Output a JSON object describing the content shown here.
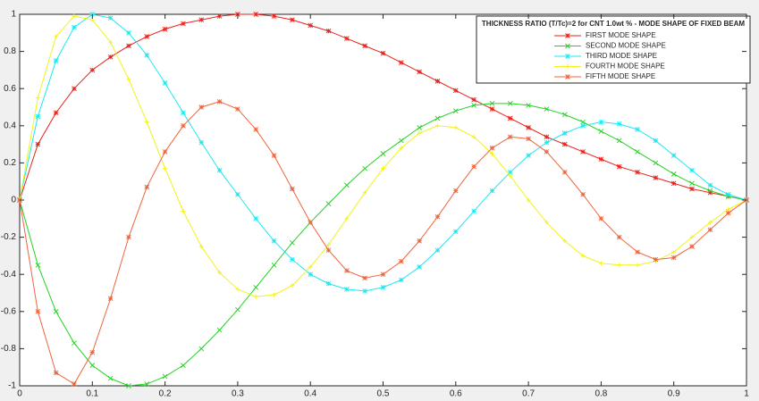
{
  "chart_data": {
    "type": "line",
    "legend_title": "THICKNESS RATIO (T/Tc)=2 for CNT 1.0wt % - MODE SHAPE OF FIXED BEAM",
    "legend_position": "upper right",
    "x": [
      0,
      0.025,
      0.05,
      0.075,
      0.1,
      0.125,
      0.15,
      0.175,
      0.2,
      0.225,
      0.25,
      0.275,
      0.3,
      0.325,
      0.35,
      0.375,
      0.4,
      0.425,
      0.45,
      0.475,
      0.5,
      0.525,
      0.55,
      0.575,
      0.6,
      0.625,
      0.65,
      0.675,
      0.7,
      0.725,
      0.75,
      0.775,
      0.8,
      0.825,
      0.85,
      0.875,
      0.9,
      0.925,
      0.95,
      0.975,
      1
    ],
    "xlim": [
      0,
      1
    ],
    "xticks": [
      0,
      0.1,
      0.2,
      0.3,
      0.4,
      0.5,
      0.6,
      0.7,
      0.8,
      0.9,
      1
    ],
    "ylim": [
      -1,
      1
    ],
    "yticks": [
      -1,
      -0.8,
      -0.6,
      -0.4,
      -0.2,
      0,
      0.2,
      0.4,
      0.6,
      0.8,
      1
    ],
    "grid": false,
    "series": [
      {
        "name": "FIRST MODE SHAPE",
        "color": "#e8231c",
        "marker": "star",
        "values": [
          0,
          0.3,
          0.47,
          0.6,
          0.7,
          0.77,
          0.83,
          0.88,
          0.92,
          0.95,
          0.97,
          0.99,
          1.0,
          1.0,
          0.99,
          0.97,
          0.94,
          0.91,
          0.87,
          0.83,
          0.79,
          0.74,
          0.69,
          0.64,
          0.59,
          0.54,
          0.49,
          0.44,
          0.39,
          0.34,
          0.3,
          0.26,
          0.22,
          0.18,
          0.15,
          0.12,
          0.09,
          0.06,
          0.04,
          0.02,
          0
        ]
      },
      {
        "name": "SECOND MODE SHAPE",
        "color": "#22d422",
        "marker": "x",
        "values": [
          0,
          -0.35,
          -0.6,
          -0.77,
          -0.89,
          -0.96,
          -1.0,
          -0.99,
          -0.95,
          -0.89,
          -0.8,
          -0.7,
          -0.59,
          -0.47,
          -0.35,
          -0.23,
          -0.12,
          -0.02,
          0.08,
          0.17,
          0.25,
          0.32,
          0.39,
          0.44,
          0.48,
          0.51,
          0.52,
          0.52,
          0.51,
          0.49,
          0.46,
          0.42,
          0.37,
          0.32,
          0.26,
          0.2,
          0.14,
          0.09,
          0.05,
          0.02,
          0
        ]
      },
      {
        "name": "THIRD MODE SHAPE",
        "color": "#1ee8f0",
        "marker": "star",
        "values": [
          0,
          0.45,
          0.75,
          0.93,
          1.0,
          0.98,
          0.9,
          0.78,
          0.63,
          0.47,
          0.31,
          0.16,
          0.03,
          -0.1,
          -0.22,
          -0.32,
          -0.4,
          -0.45,
          -0.48,
          -0.49,
          -0.47,
          -0.43,
          -0.36,
          -0.27,
          -0.17,
          -0.06,
          0.05,
          0.15,
          0.24,
          0.31,
          0.36,
          0.4,
          0.42,
          0.41,
          0.38,
          0.32,
          0.24,
          0.16,
          0.08,
          0.03,
          0
        ]
      },
      {
        "name": "FOURTH MODE SHAPE",
        "color": "#f2f21a",
        "marker": "plus",
        "values": [
          0,
          0.55,
          0.88,
          0.99,
          0.97,
          0.85,
          0.65,
          0.42,
          0.17,
          -0.06,
          -0.25,
          -0.39,
          -0.48,
          -0.52,
          -0.51,
          -0.46,
          -0.36,
          -0.24,
          -0.1,
          0.04,
          0.17,
          0.28,
          0.36,
          0.4,
          0.39,
          0.34,
          0.25,
          0.13,
          0,
          -0.12,
          -0.22,
          -0.3,
          -0.34,
          -0.35,
          -0.35,
          -0.33,
          -0.28,
          -0.2,
          -0.12,
          -0.05,
          0
        ]
      },
      {
        "name": "FIFTH MODE SHAPE",
        "color": "#f0643c",
        "marker": "star",
        "values": [
          0,
          -0.6,
          -0.93,
          -0.99,
          -0.82,
          -0.53,
          -0.2,
          0.07,
          0.26,
          0.4,
          0.5,
          0.53,
          0.49,
          0.38,
          0.24,
          0.06,
          -0.12,
          -0.27,
          -0.38,
          -0.42,
          -0.4,
          -0.33,
          -0.22,
          -0.09,
          0.05,
          0.18,
          0.28,
          0.34,
          0.33,
          0.26,
          0.15,
          0.03,
          -0.1,
          -0.2,
          -0.28,
          -0.32,
          -0.31,
          -0.25,
          -0.16,
          -0.07,
          0
        ]
      }
    ]
  }
}
